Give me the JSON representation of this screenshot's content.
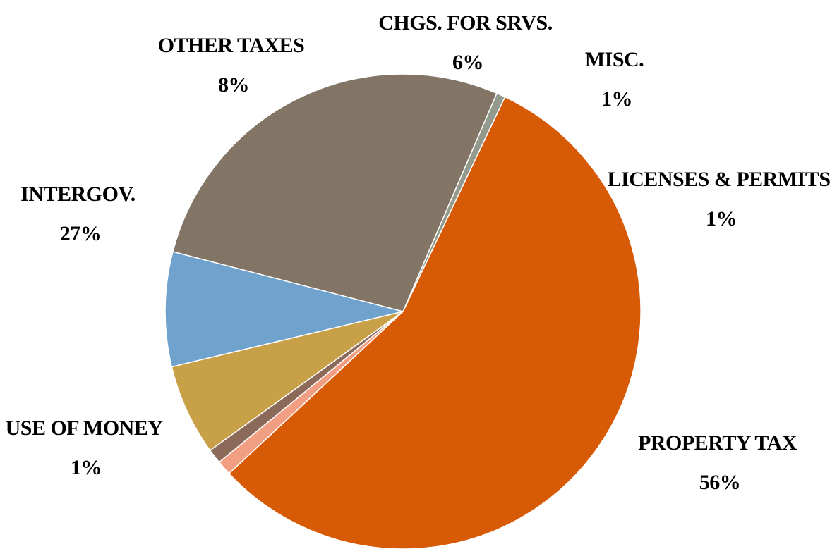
{
  "chart_data": {
    "type": "pie",
    "start_angle_deg": 137,
    "direction": "clockwise",
    "slices": [
      {
        "label": "PROPERTY TAX",
        "value_label": "56%",
        "value": 56.0,
        "color": "#D75B07"
      },
      {
        "label": "USE OF MONEY",
        "value_label": "1%",
        "value": 0.6,
        "color": "#94998E"
      },
      {
        "label": "INTERGOV.",
        "value_label": "27%",
        "value": 27.4,
        "color": "#827565"
      },
      {
        "label": "OTHER TAXES",
        "value_label": "8%",
        "value": 7.8,
        "color": "#6FA2CC"
      },
      {
        "label": "CHGS. FOR SRVS.",
        "value_label": "6%",
        "value": 6.2,
        "color": "#C8A048"
      },
      {
        "label": "MISC.",
        "value_label": "1%",
        "value": 1.0,
        "color": "#8B6A5A"
      },
      {
        "label": "LICENSES & PERMITS",
        "value_label": "1%",
        "value": 1.0,
        "color": "#F19E82"
      }
    ]
  }
}
